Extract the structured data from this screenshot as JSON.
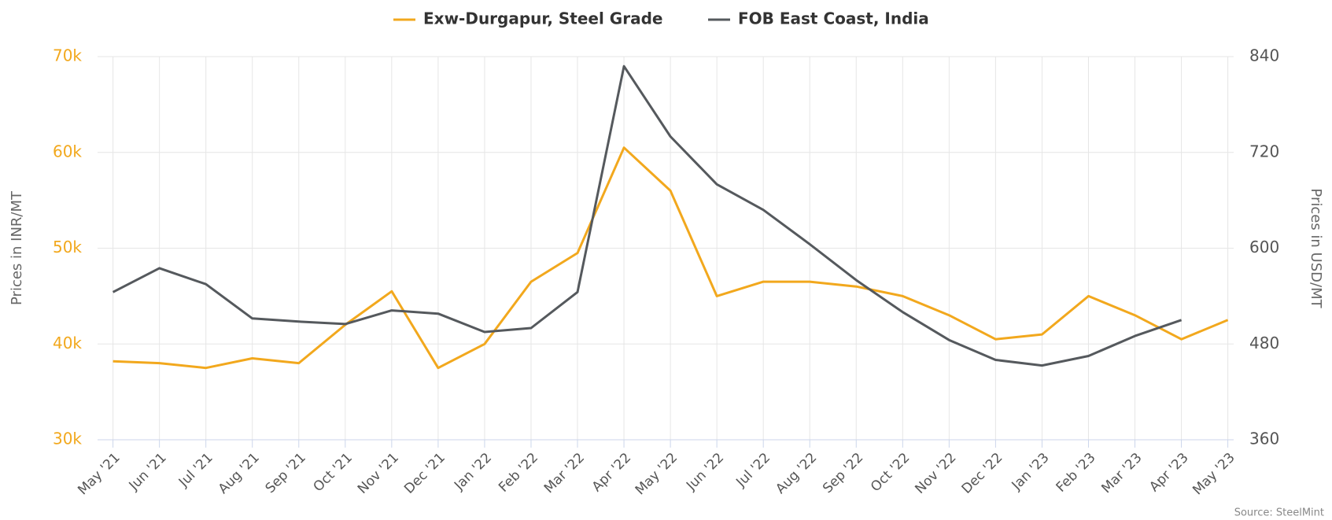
{
  "chart_data": {
    "type": "line",
    "categories": [
      "May '21",
      "Jun '21",
      "Jul '21",
      "Aug '21",
      "Sep '21",
      "Oct '21",
      "Nov '21",
      "Dec '21",
      "Jan '22",
      "Feb '22",
      "Mar '22",
      "Apr '22",
      "May '22",
      "Jun '22",
      "Jul '22",
      "Aug '22",
      "Sep '22",
      "Oct '22",
      "Nov '22",
      "Dec '22",
      "Jan '23",
      "Feb '23",
      "Mar '23",
      "Apr '23",
      "May '23"
    ],
    "series": [
      {
        "name": "Exw-Durgapur, Steel Grade",
        "color": "#f2a81d",
        "axis": "y",
        "values": [
          38.2,
          38.0,
          37.5,
          38.5,
          38.0,
          42.0,
          45.5,
          37.5,
          40.0,
          46.5,
          49.5,
          60.5,
          56.0,
          45.0,
          46.5,
          46.5,
          46.0,
          45.0,
          43.0,
          40.5,
          41.0,
          45.0,
          43.0,
          40.5,
          42.5
        ]
      },
      {
        "name": "FOB East Coast, India",
        "color": "#55595d",
        "axis": "y2",
        "values": [
          545,
          575,
          555,
          512,
          508,
          505,
          522,
          518,
          495,
          500,
          545,
          828,
          740,
          680,
          648,
          605,
          560,
          520,
          485,
          460,
          453,
          465,
          490,
          510,
          null
        ]
      }
    ],
    "ylabel": "Prices in INR/MT",
    "y2label": "Prices in USD/MT",
    "ylim": [
      30,
      70
    ],
    "yticks": [
      {
        "value": 30,
        "label": "30k"
      },
      {
        "value": 40,
        "label": "40k"
      },
      {
        "value": 50,
        "label": "50k"
      },
      {
        "value": 60,
        "label": "60k"
      },
      {
        "value": 70,
        "label": "70k"
      }
    ],
    "y2lim": [
      360,
      840
    ],
    "y2ticks": [
      360,
      480,
      600,
      720,
      840
    ],
    "source": "Source: SteelMint",
    "grid": true,
    "legend": "top"
  }
}
